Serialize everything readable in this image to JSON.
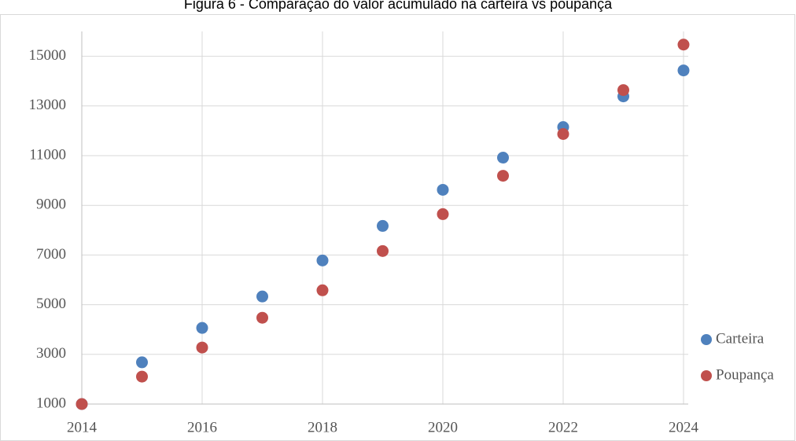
{
  "chart_data": {
    "type": "scatter",
    "title": "Figura 6 - Comparação do valor acumulado na carteira vs poupança",
    "x": [
      2014,
      2015,
      2016,
      2017,
      2018,
      2019,
      2020,
      2021,
      2022,
      2023,
      2024
    ],
    "series": [
      {
        "name": "Carteira",
        "color": "#4f81bd",
        "values": [
          1000,
          2680,
          4065,
          5330,
          6780,
          8170,
          9625,
          10920,
          12150,
          13385,
          14430
        ]
      },
      {
        "name": "Poupança",
        "color": "#c0504d",
        "values": [
          1000,
          2105,
          3275,
          4475,
          5580,
          7160,
          8645,
          10190,
          11870,
          13640,
          15470
        ]
      }
    ],
    "xlim": [
      2014,
      2024
    ],
    "xticks": [
      2014,
      2016,
      2018,
      2020,
      2022,
      2024
    ],
    "ylim": [
      1000,
      16000
    ],
    "yticks": [
      1000,
      3000,
      5000,
      7000,
      9000,
      11000,
      13000,
      15000
    ],
    "grid": true,
    "legend": "right"
  }
}
